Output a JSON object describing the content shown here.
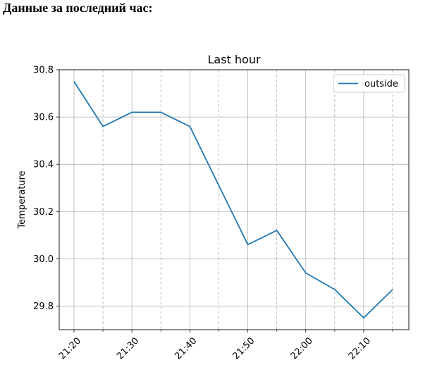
{
  "page": {
    "heading": "Данные за последний час:"
  },
  "chart_data": {
    "type": "line",
    "title": "Last hour",
    "xlabel": "",
    "ylabel": "Temperature",
    "x": [
      "21:20",
      "21:25",
      "21:30",
      "21:35",
      "21:40",
      "21:45",
      "21:50",
      "21:55",
      "22:00",
      "22:05",
      "22:10",
      "22:15"
    ],
    "x_tick_labels": [
      "21:20",
      "21:30",
      "21:40",
      "21:50",
      "22:00",
      "22:10"
    ],
    "y_tick_labels": [
      "29.8",
      "30.0",
      "30.2",
      "30.4",
      "30.6",
      "30.8"
    ],
    "series": [
      {
        "name": "outside",
        "color": "#1f77b4",
        "values": [
          30.75,
          30.56,
          30.62,
          30.62,
          30.56,
          30.31,
          30.06,
          30.12,
          29.94,
          29.87,
          29.75,
          29.87
        ]
      }
    ],
    "ylim": [
      29.7,
      30.8
    ],
    "grid": "on (major solid, minor dashed)",
    "legend_position": "top-right"
  }
}
